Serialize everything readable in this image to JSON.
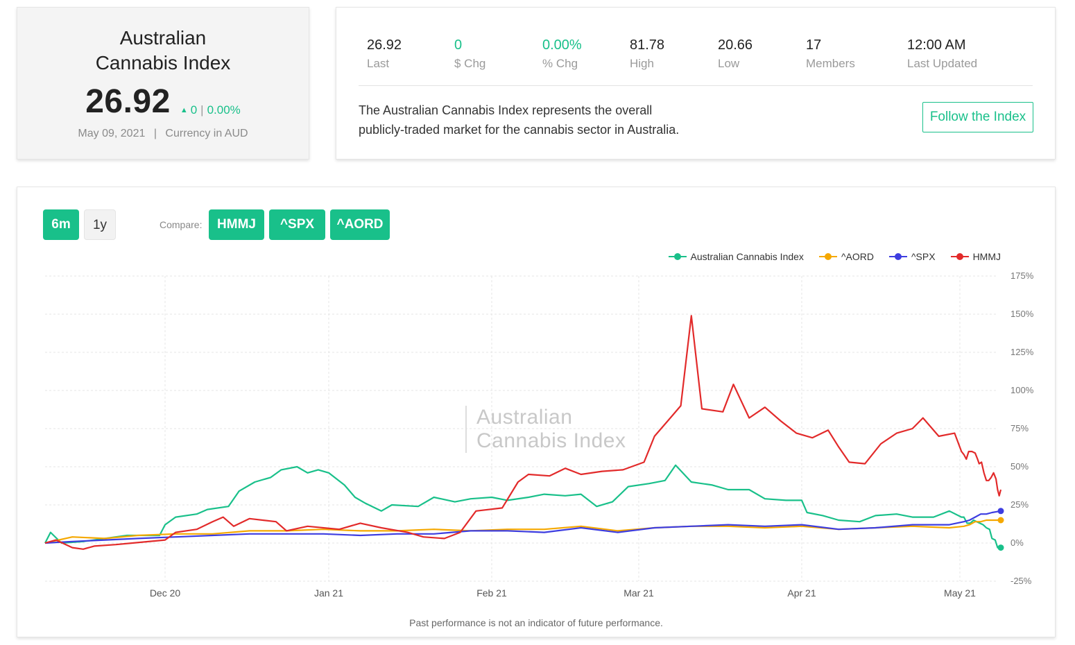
{
  "index_card": {
    "title_line1": "Australian",
    "title_line2": "Cannabis Index",
    "price": "26.92",
    "change": "0",
    "change_pct": "0.00%",
    "date": "May 09, 2021",
    "currency": "Currency in AUD",
    "accent_color": "#19c08a"
  },
  "stats": [
    {
      "value": "26.92",
      "label": "Last"
    },
    {
      "value": "0",
      "label": "$ Chg"
    },
    {
      "value": "0.00%",
      "label": "% Chg"
    },
    {
      "value": "81.78",
      "label": "High"
    },
    {
      "value": "20.66",
      "label": "Low"
    },
    {
      "value": "17",
      "label": "Members"
    },
    {
      "value": "12:00 AM",
      "label": "Last Updated"
    }
  ],
  "description_line1": "The Australian Cannabis Index represents the overall",
  "description_line2": "publicly-traded market for the cannabis sector in Australia.",
  "follow_button": "Follow the Index",
  "controls": {
    "range_6m": "6m",
    "range_1y": "1y",
    "compare_label": "Compare:",
    "compare_hmmj": "HMMJ",
    "compare_spx": "^SPX",
    "compare_aord": "^AORD"
  },
  "watermark_line1": "Australian",
  "watermark_line2": "Cannabis Index",
  "disclaimer": "Past performance is not an indicator of future performance.",
  "chart_data": {
    "type": "line",
    "x_tick_labels": [
      "Dec 20",
      "Jan 21",
      "Feb 21",
      "Mar 21",
      "Apr 21",
      "May 21"
    ],
    "y_tick_labels": [
      "175%",
      "150%",
      "125%",
      "100%",
      "75%",
      "50%",
      "25%",
      "0%",
      "-25%"
    ],
    "ylim": [
      -25,
      175
    ],
    "y_unit": "%",
    "grid": true,
    "legend_position": "top-right",
    "series": [
      {
        "name": "Australian Cannabis Index",
        "color": "#19c08a",
        "points": [
          [
            "2020-11-09",
            0
          ],
          [
            "2020-11-10",
            7
          ],
          [
            "2020-11-12",
            0
          ],
          [
            "2020-11-16",
            1
          ],
          [
            "2020-11-20",
            3
          ],
          [
            "2020-11-24",
            5
          ],
          [
            "2020-11-30",
            5
          ],
          [
            "2020-12-01",
            12
          ],
          [
            "2020-12-03",
            17
          ],
          [
            "2020-12-07",
            19
          ],
          [
            "2020-12-09",
            22
          ],
          [
            "2020-12-13",
            24
          ],
          [
            "2020-12-15",
            34
          ],
          [
            "2020-12-18",
            40
          ],
          [
            "2020-12-21",
            43
          ],
          [
            "2020-12-23",
            48
          ],
          [
            "2020-12-26",
            50
          ],
          [
            "2020-12-28",
            46
          ],
          [
            "2020-12-30",
            48
          ],
          [
            "2021-01-01",
            46
          ],
          [
            "2021-01-04",
            38
          ],
          [
            "2021-01-06",
            30
          ],
          [
            "2021-01-08",
            26
          ],
          [
            "2021-01-11",
            21
          ],
          [
            "2021-01-13",
            25
          ],
          [
            "2021-01-18",
            24
          ],
          [
            "2021-01-21",
            30
          ],
          [
            "2021-01-25",
            27
          ],
          [
            "2021-01-28",
            29
          ],
          [
            "2021-02-01",
            30
          ],
          [
            "2021-02-04",
            28
          ],
          [
            "2021-02-08",
            30
          ],
          [
            "2021-02-11",
            32
          ],
          [
            "2021-02-15",
            31
          ],
          [
            "2021-02-18",
            32
          ],
          [
            "2021-02-21",
            24
          ],
          [
            "2021-02-24",
            27
          ],
          [
            "2021-02-27",
            37
          ],
          [
            "2021-03-03",
            39
          ],
          [
            "2021-03-06",
            41
          ],
          [
            "2021-03-08",
            51
          ],
          [
            "2021-03-11",
            40
          ],
          [
            "2021-03-15",
            38
          ],
          [
            "2021-03-18",
            35
          ],
          [
            "2021-03-22",
            35
          ],
          [
            "2021-03-25",
            29
          ],
          [
            "2021-03-29",
            28
          ],
          [
            "2021-04-01",
            28
          ],
          [
            "2021-04-02",
            20
          ],
          [
            "2021-04-05",
            18
          ],
          [
            "2021-04-08",
            15
          ],
          [
            "2021-04-12",
            14
          ],
          [
            "2021-04-15",
            18
          ],
          [
            "2021-04-19",
            19
          ],
          [
            "2021-04-22",
            17
          ],
          [
            "2021-04-26",
            17
          ],
          [
            "2021-04-29",
            21
          ],
          [
            "2021-05-03",
            17
          ],
          [
            "2021-05-06",
            17
          ],
          [
            "2021-05-10",
            13
          ],
          [
            "2021-05-14",
            13
          ],
          [
            "2021-05-18",
            15
          ],
          [
            "2021-05-22",
            14
          ],
          [
            "2021-05-26",
            13
          ],
          [
            "2021-05-30",
            12
          ],
          [
            "2021-06-03",
            10
          ],
          [
            "2021-06-07",
            9
          ],
          [
            "2021-06-10",
            3
          ],
          [
            "2021-06-14",
            2
          ],
          [
            "2021-06-17",
            -3
          ],
          [
            "2021-06-21",
            -3
          ]
        ]
      },
      {
        "name": "^AORD",
        "color": "#f5a800",
        "points": [
          [
            "2020-11-09",
            0
          ],
          [
            "2020-11-14",
            4
          ],
          [
            "2020-11-20",
            3
          ],
          [
            "2020-11-26",
            5
          ],
          [
            "2020-12-03",
            6
          ],
          [
            "2020-12-10",
            6
          ],
          [
            "2020-12-17",
            8
          ],
          [
            "2020-12-24",
            8
          ],
          [
            "2020-12-31",
            9
          ],
          [
            "2021-01-07",
            8
          ],
          [
            "2021-01-14",
            8
          ],
          [
            "2021-01-21",
            9
          ],
          [
            "2021-01-28",
            8
          ],
          [
            "2021-02-04",
            9
          ],
          [
            "2021-02-11",
            9
          ],
          [
            "2021-02-18",
            11
          ],
          [
            "2021-02-25",
            8
          ],
          [
            "2021-03-04",
            10
          ],
          [
            "2021-03-11",
            11
          ],
          [
            "2021-03-18",
            11
          ],
          [
            "2021-03-25",
            10
          ],
          [
            "2021-04-01",
            11
          ],
          [
            "2021-04-08",
            9
          ],
          [
            "2021-04-15",
            10
          ],
          [
            "2021-04-22",
            11
          ],
          [
            "2021-04-29",
            10
          ],
          [
            "2021-05-06",
            11
          ],
          [
            "2021-05-13",
            12
          ],
          [
            "2021-05-20",
            14
          ],
          [
            "2021-05-27",
            14
          ],
          [
            "2021-06-03",
            15
          ],
          [
            "2021-06-10",
            15
          ],
          [
            "2021-06-21",
            15
          ]
        ]
      },
      {
        "name": "^SPX",
        "color": "#3d3de0",
        "points": [
          [
            "2020-11-09",
            0
          ],
          [
            "2020-11-14",
            1
          ],
          [
            "2020-11-20",
            2
          ],
          [
            "2020-11-26",
            3
          ],
          [
            "2020-12-03",
            4
          ],
          [
            "2020-12-10",
            5
          ],
          [
            "2020-12-17",
            6
          ],
          [
            "2020-12-24",
            6
          ],
          [
            "2020-12-31",
            6
          ],
          [
            "2021-01-07",
            5
          ],
          [
            "2021-01-14",
            6
          ],
          [
            "2021-01-21",
            6
          ],
          [
            "2021-01-28",
            8
          ],
          [
            "2021-02-04",
            8
          ],
          [
            "2021-02-11",
            7
          ],
          [
            "2021-02-18",
            10
          ],
          [
            "2021-02-25",
            7
          ],
          [
            "2021-03-04",
            10
          ],
          [
            "2021-03-11",
            11
          ],
          [
            "2021-03-18",
            12
          ],
          [
            "2021-03-25",
            11
          ],
          [
            "2021-04-01",
            12
          ],
          [
            "2021-04-08",
            9
          ],
          [
            "2021-04-15",
            10
          ],
          [
            "2021-04-22",
            12
          ],
          [
            "2021-04-29",
            12
          ],
          [
            "2021-05-06",
            14
          ],
          [
            "2021-05-13",
            15
          ],
          [
            "2021-05-20",
            17
          ],
          [
            "2021-05-27",
            19
          ],
          [
            "2021-06-03",
            19
          ],
          [
            "2021-06-10",
            20
          ],
          [
            "2021-06-21",
            21
          ]
        ]
      },
      {
        "name": "HMMJ",
        "color": "#e22a2a",
        "points": [
          [
            "2020-11-09",
            0
          ],
          [
            "2020-11-11",
            2
          ],
          [
            "2020-11-14",
            -3
          ],
          [
            "2020-11-16",
            -4
          ],
          [
            "2020-11-18",
            -2
          ],
          [
            "2020-11-22",
            -1
          ],
          [
            "2020-11-25",
            0
          ],
          [
            "2020-12-01",
            2
          ],
          [
            "2020-12-03",
            7
          ],
          [
            "2020-12-07",
            9
          ],
          [
            "2020-12-10",
            14
          ],
          [
            "2020-12-12",
            17
          ],
          [
            "2020-12-14",
            11
          ],
          [
            "2020-12-17",
            16
          ],
          [
            "2020-12-22",
            14
          ],
          [
            "2020-12-24",
            8
          ],
          [
            "2020-12-28",
            11
          ],
          [
            "2021-01-03",
            9
          ],
          [
            "2021-01-07",
            13
          ],
          [
            "2021-01-11",
            10
          ],
          [
            "2021-01-16",
            7
          ],
          [
            "2021-01-19",
            4
          ],
          [
            "2021-01-23",
            3
          ],
          [
            "2021-01-26",
            7
          ],
          [
            "2021-01-29",
            21
          ],
          [
            "2021-02-03",
            23
          ],
          [
            "2021-02-06",
            40
          ],
          [
            "2021-02-08",
            45
          ],
          [
            "2021-02-12",
            44
          ],
          [
            "2021-02-15",
            49
          ],
          [
            "2021-02-18",
            45
          ],
          [
            "2021-02-22",
            47
          ],
          [
            "2021-02-26",
            48
          ],
          [
            "2021-03-02",
            53
          ],
          [
            "2021-03-04",
            70
          ],
          [
            "2021-03-07",
            82
          ],
          [
            "2021-03-09",
            90
          ],
          [
            "2021-03-11",
            149
          ],
          [
            "2021-03-13",
            88
          ],
          [
            "2021-03-17",
            86
          ],
          [
            "2021-03-19",
            104
          ],
          [
            "2021-03-22",
            82
          ],
          [
            "2021-03-25",
            89
          ],
          [
            "2021-03-28",
            80
          ],
          [
            "2021-03-31",
            72
          ],
          [
            "2021-04-03",
            69
          ],
          [
            "2021-04-06",
            74
          ],
          [
            "2021-04-08",
            63
          ],
          [
            "2021-04-10",
            53
          ],
          [
            "2021-04-13",
            52
          ],
          [
            "2021-04-16",
            65
          ],
          [
            "2021-04-19",
            72
          ],
          [
            "2021-04-22",
            75
          ],
          [
            "2021-04-24",
            82
          ],
          [
            "2021-04-27",
            70
          ],
          [
            "2021-04-30",
            72
          ],
          [
            "2021-05-03",
            60
          ],
          [
            "2021-05-06",
            58
          ],
          [
            "2021-05-09",
            55
          ],
          [
            "2021-05-12",
            60
          ],
          [
            "2021-05-16",
            60
          ],
          [
            "2021-05-20",
            59
          ],
          [
            "2021-05-23",
            55
          ],
          [
            "2021-05-25",
            52
          ],
          [
            "2021-05-28",
            53
          ],
          [
            "2021-05-31",
            46
          ],
          [
            "2021-06-03",
            41
          ],
          [
            "2021-06-06",
            41
          ],
          [
            "2021-06-09",
            43
          ],
          [
            "2021-06-12",
            46
          ],
          [
            "2021-06-15",
            42
          ],
          [
            "2021-06-17",
            35
          ],
          [
            "2021-06-19",
            31
          ],
          [
            "2021-06-21",
            35
          ]
        ]
      }
    ]
  }
}
